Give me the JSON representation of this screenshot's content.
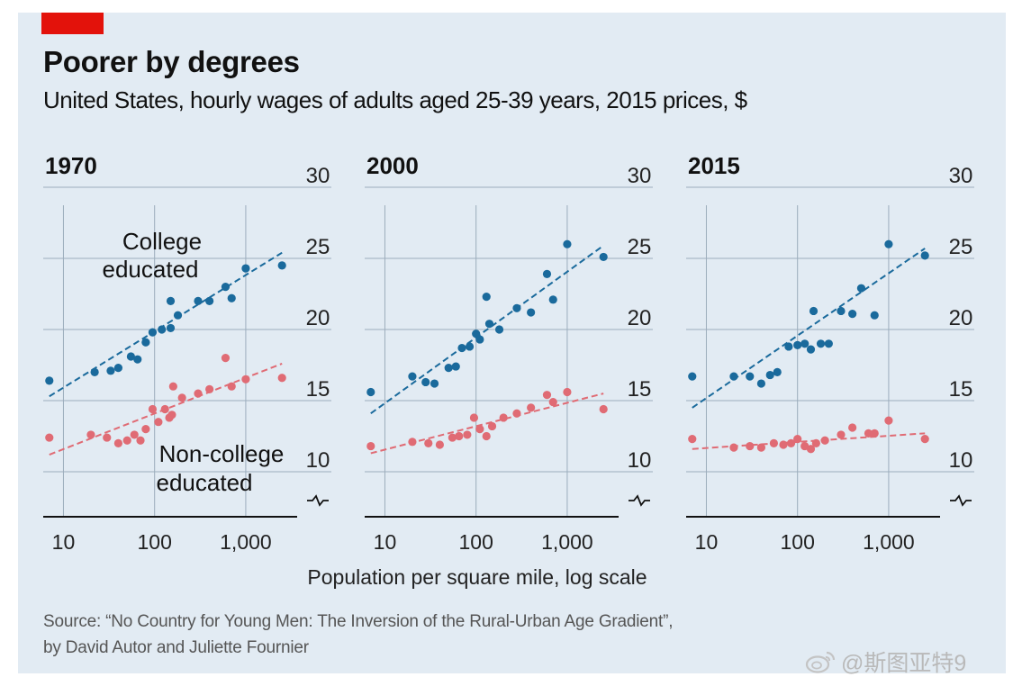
{
  "colors": {
    "background": "#e2ebf3",
    "accent_tag": "#e3120b",
    "college": "#1a6a9c",
    "noncollege": "#e06b74",
    "grid": "#9cadbc"
  },
  "title": "Poorer by degrees",
  "subtitle": "United States, hourly wages of adults aged 25-39 years, 2015 prices, $",
  "chart_data": [
    {
      "type": "scatter",
      "title": "1970",
      "xscale": "log",
      "xlim": [
        6,
        3500
      ],
      "ylim": [
        8,
        30
      ],
      "x_ticks": [
        "10",
        "100",
        "1,000"
      ],
      "y_ticks": [
        "30",
        "25",
        "20",
        "15",
        "10"
      ],
      "axis_break": true,
      "grid": true,
      "series": [
        {
          "name": "College educated",
          "color": "#1a6a9c",
          "points": [
            [
              7,
              16.4
            ],
            [
              22,
              17.0
            ],
            [
              33,
              17.1
            ],
            [
              40,
              17.3
            ],
            [
              55,
              18.1
            ],
            [
              65,
              17.9
            ],
            [
              80,
              19.1
            ],
            [
              95,
              19.8
            ],
            [
              120,
              20.0
            ],
            [
              150,
              20.1
            ],
            [
              150,
              22.0
            ],
            [
              180,
              21.0
            ],
            [
              300,
              22.0
            ],
            [
              400,
              22.0
            ],
            [
              600,
              23.0
            ],
            [
              700,
              22.2
            ],
            [
              1000,
              24.3
            ],
            [
              2500,
              24.5
            ]
          ],
          "trend": [
            [
              7,
              15.3
            ],
            [
              2500,
              25.4
            ]
          ]
        },
        {
          "name": "Non-college educated",
          "color": "#e06b74",
          "points": [
            [
              7,
              12.4
            ],
            [
              20,
              12.6
            ],
            [
              30,
              12.4
            ],
            [
              40,
              12.0
            ],
            [
              50,
              12.2
            ],
            [
              60,
              12.6
            ],
            [
              70,
              12.2
            ],
            [
              80,
              13.0
            ],
            [
              95,
              14.4
            ],
            [
              110,
              13.5
            ],
            [
              130,
              14.4
            ],
            [
              145,
              13.8
            ],
            [
              155,
              14.0
            ],
            [
              160,
              16.0
            ],
            [
              200,
              15.2
            ],
            [
              300,
              15.5
            ],
            [
              400,
              15.8
            ],
            [
              600,
              18.0
            ],
            [
              700,
              16.0
            ],
            [
              1000,
              16.5
            ],
            [
              2500,
              16.6
            ]
          ],
          "trend": [
            [
              7,
              11.2
            ],
            [
              2500,
              17.6
            ]
          ]
        }
      ],
      "annotations": {
        "college": [
          "College",
          "educated"
        ],
        "noncollege": [
          "Non-college",
          "educated"
        ]
      }
    },
    {
      "type": "scatter",
      "title": "2000",
      "xscale": "log",
      "xlim": [
        6,
        3500
      ],
      "ylim": [
        8,
        30
      ],
      "x_ticks": [
        "10",
        "100",
        "1,000"
      ],
      "y_ticks": [
        "30",
        "25",
        "20",
        "15",
        "10"
      ],
      "axis_break": true,
      "grid": true,
      "series": [
        {
          "color": "#1a6a9c",
          "points": [
            [
              7,
              15.6
            ],
            [
              20,
              16.7
            ],
            [
              28,
              16.3
            ],
            [
              35,
              16.2
            ],
            [
              50,
              17.3
            ],
            [
              60,
              17.4
            ],
            [
              70,
              18.7
            ],
            [
              85,
              18.8
            ],
            [
              100,
              19.7
            ],
            [
              110,
              19.3
            ],
            [
              130,
              22.3
            ],
            [
              140,
              20.4
            ],
            [
              180,
              20.0
            ],
            [
              280,
              21.5
            ],
            [
              400,
              21.2
            ],
            [
              600,
              23.9
            ],
            [
              700,
              22.1
            ],
            [
              1000,
              26.0
            ],
            [
              2500,
              25.1
            ]
          ],
          "trend": [
            [
              7,
              14.1
            ],
            [
              2500,
              25.9
            ]
          ]
        },
        {
          "color": "#e06b74",
          "points": [
            [
              7,
              11.8
            ],
            [
              20,
              12.1
            ],
            [
              30,
              12.0
            ],
            [
              40,
              11.9
            ],
            [
              55,
              12.4
            ],
            [
              65,
              12.5
            ],
            [
              80,
              12.6
            ],
            [
              95,
              13.8
            ],
            [
              110,
              13.0
            ],
            [
              130,
              12.5
            ],
            [
              150,
              13.2
            ],
            [
              200,
              13.8
            ],
            [
              280,
              14.1
            ],
            [
              400,
              14.5
            ],
            [
              600,
              15.4
            ],
            [
              700,
              14.9
            ],
            [
              1000,
              15.6
            ],
            [
              2500,
              14.4
            ]
          ],
          "trend": [
            [
              7,
              11.3
            ],
            [
              2500,
              15.5
            ]
          ]
        }
      ]
    },
    {
      "type": "scatter",
      "title": "2015",
      "xscale": "log",
      "xlim": [
        6,
        3500
      ],
      "ylim": [
        8,
        30
      ],
      "x_ticks": [
        "10",
        "100",
        "1,000"
      ],
      "y_ticks": [
        "30",
        "25",
        "20",
        "15",
        "10"
      ],
      "axis_break": true,
      "grid": true,
      "series": [
        {
          "color": "#1a6a9c",
          "points": [
            [
              7,
              16.7
            ],
            [
              20,
              16.7
            ],
            [
              30,
              16.7
            ],
            [
              40,
              16.2
            ],
            [
              50,
              16.8
            ],
            [
              60,
              17.0
            ],
            [
              80,
              18.8
            ],
            [
              100,
              18.9
            ],
            [
              120,
              19.0
            ],
            [
              140,
              18.6
            ],
            [
              150,
              21.3
            ],
            [
              180,
              19.0
            ],
            [
              220,
              19.0
            ],
            [
              300,
              21.3
            ],
            [
              400,
              21.1
            ],
            [
              500,
              22.9
            ],
            [
              700,
              21.0
            ],
            [
              1000,
              26.0
            ],
            [
              2500,
              25.2
            ]
          ],
          "trend": [
            [
              7,
              14.5
            ],
            [
              2500,
              25.7
            ]
          ]
        },
        {
          "color": "#e06b74",
          "points": [
            [
              7,
              12.3
            ],
            [
              20,
              11.7
            ],
            [
              30,
              11.8
            ],
            [
              40,
              11.7
            ],
            [
              55,
              12.0
            ],
            [
              70,
              11.9
            ],
            [
              85,
              12.0
            ],
            [
              100,
              12.3
            ],
            [
              120,
              11.8
            ],
            [
              140,
              11.6
            ],
            [
              160,
              12.0
            ],
            [
              200,
              12.2
            ],
            [
              300,
              12.6
            ],
            [
              400,
              13.1
            ],
            [
              600,
              12.7
            ],
            [
              700,
              12.7
            ],
            [
              1000,
              13.6
            ],
            [
              2500,
              12.3
            ]
          ],
          "trend": [
            [
              7,
              11.6
            ],
            [
              2500,
              12.7
            ]
          ]
        }
      ]
    }
  ],
  "xlabel": "Population per square mile, log scale",
  "source": {
    "line1": "Source: “No Country for Young Men: The Inversion of the Rural-Urban Age Gradient”,",
    "line2": "by David Autor and Juliette Fournier"
  },
  "watermark": "@斯图亚特9"
}
